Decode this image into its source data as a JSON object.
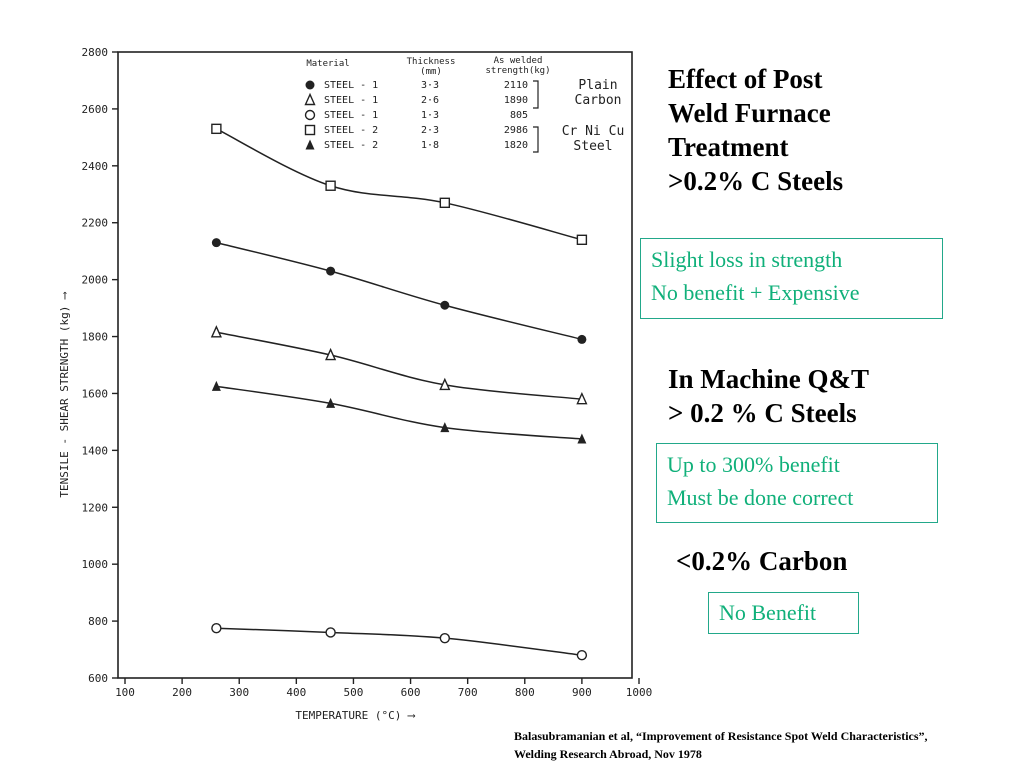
{
  "headings": {
    "furnace": [
      "Effect of Post",
      "Weld Furnace",
      "Treatment",
      ">0.2% C Steels"
    ],
    "machine": [
      "In Machine Q&T",
      "> 0.2 % C Steels"
    ],
    "low_carbon": "<0.2% Carbon"
  },
  "notes": {
    "furnace": [
      "Slight loss in strength",
      "No benefit + Expensive"
    ],
    "machine": [
      "Up to 300% benefit",
      "Must be done correct"
    ],
    "low_carbon": "No Benefit"
  },
  "citation": [
    "Balasubramanian et al, “Improvement of Resistance Spot Weld Characteristics”,",
    "Welding Research Abroad, Nov 1978"
  ],
  "colors": {
    "accent_green": "#10b07a",
    "box_border": "#22a88a",
    "ink": "#222222"
  },
  "chart_data": {
    "type": "line",
    "title": "",
    "xlabel": "TEMPERATURE (°C) ⟶",
    "ylabel": "TENSILE - SHEAR STRENGTH (kg) ⟶",
    "xlim": [
      100,
      1000
    ],
    "ylim": [
      600,
      2800
    ],
    "x_ticks": [
      100,
      200,
      300,
      400,
      500,
      600,
      700,
      800,
      900,
      1000
    ],
    "y_ticks": [
      600,
      800,
      1000,
      1200,
      1400,
      1600,
      1800,
      2000,
      2200,
      2400,
      2600,
      2800
    ],
    "grid": false,
    "legend_headers": {
      "material": "Material",
      "thickness": [
        "Thickness",
        "(mm)"
      ],
      "strength": [
        "As welded",
        "strength(kg)"
      ]
    },
    "legend_groups": [
      [
        "Plain",
        "Carbon"
      ],
      [
        "Cr Ni Cu",
        "Steel"
      ]
    ],
    "series": [
      {
        "name": "STEEL - 1",
        "marker": "filled-circle",
        "thickness": "3·3",
        "as_welded": "2110",
        "x": [
          260,
          460,
          660,
          900
        ],
        "y": [
          2130,
          2030,
          1910,
          1790
        ]
      },
      {
        "name": "STEEL - 1",
        "marker": "open-triangle",
        "thickness": "2·6",
        "as_welded": "1890",
        "x": [
          260,
          460,
          660,
          900
        ],
        "y": [
          1815,
          1735,
          1630,
          1580
        ]
      },
      {
        "name": "STEEL - 1",
        "marker": "open-circle",
        "thickness": "1·3",
        "as_welded": "805",
        "x": [
          260,
          460,
          660,
          900
        ],
        "y": [
          775,
          760,
          740,
          680
        ]
      },
      {
        "name": "STEEL - 2",
        "marker": "open-square",
        "thickness": "2·3",
        "as_welded": "2986",
        "x": [
          260,
          460,
          660,
          900
        ],
        "y": [
          2530,
          2330,
          2270,
          2140
        ]
      },
      {
        "name": "STEEL - 2",
        "marker": "filled-triangle",
        "thickness": "1·8",
        "as_welded": "1820",
        "x": [
          260,
          460,
          660,
          900
        ],
        "y": [
          1625,
          1565,
          1480,
          1440
        ]
      }
    ]
  }
}
